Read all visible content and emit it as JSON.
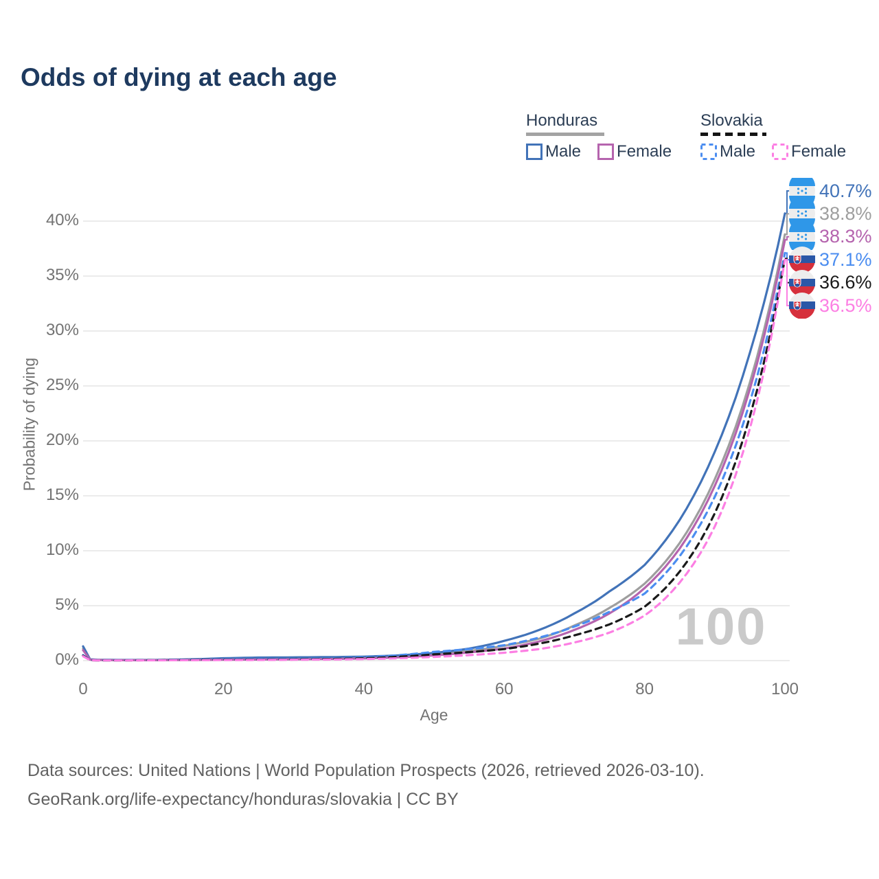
{
  "title": "Odds of dying at each age",
  "legend": {
    "groups": [
      {
        "name": "Honduras",
        "line_style": "solid",
        "underline_color": "#a3a3a3",
        "items": [
          {
            "label": "Male",
            "color": "#4273b8",
            "dash": false
          },
          {
            "label": "Female",
            "color": "#b564ae",
            "dash": false
          }
        ]
      },
      {
        "name": "Slovakia",
        "line_style": "dashed",
        "underline_color": "#141414",
        "items": [
          {
            "label": "Male",
            "color": "#4b8df0",
            "dash": true
          },
          {
            "label": "Female",
            "color": "#fc7fe3",
            "dash": true
          }
        ]
      }
    ]
  },
  "chart_data": {
    "type": "line",
    "title": "Odds of dying at each age",
    "xlabel": "Age",
    "ylabel": "Probability of dying",
    "xlim": [
      0,
      100
    ],
    "ylim": [
      0,
      42
    ],
    "xticks": [
      0,
      20,
      40,
      60,
      80,
      100
    ],
    "yticks": [
      0,
      5,
      10,
      15,
      20,
      25,
      30,
      35,
      40
    ],
    "ytick_suffix": "%",
    "grid": "horizontal",
    "watermark": "100",
    "ages": [
      0,
      1,
      2,
      5,
      10,
      15,
      20,
      25,
      30,
      35,
      40,
      45,
      50,
      55,
      60,
      65,
      70,
      75,
      80,
      85,
      90,
      95,
      100
    ],
    "series": [
      {
        "id": "honduras-male",
        "country": "Honduras",
        "sex": "Male",
        "color": "#4273b8",
        "dash": false,
        "end_label": "40.7%",
        "values": [
          1.3,
          0.12,
          0.08,
          0.06,
          0.06,
          0.12,
          0.22,
          0.28,
          0.3,
          0.32,
          0.36,
          0.48,
          0.7,
          1.1,
          1.8,
          2.8,
          4.3,
          6.3,
          8.7,
          12.8,
          19.0,
          28.0,
          40.7
        ]
      },
      {
        "id": "honduras-total",
        "country": "Honduras",
        "sex": "Both",
        "color": "#9e9e9e",
        "dash": false,
        "end_label": "38.8%",
        "values": [
          1.1,
          0.1,
          0.07,
          0.05,
          0.05,
          0.09,
          0.14,
          0.18,
          0.2,
          0.23,
          0.28,
          0.38,
          0.58,
          0.88,
          1.35,
          2.0,
          3.2,
          4.8,
          7.0,
          10.7,
          16.5,
          25.3,
          38.8
        ]
      },
      {
        "id": "honduras-female",
        "country": "Honduras",
        "sex": "Female",
        "color": "#b564ae",
        "dash": false,
        "end_label": "38.3%",
        "values": [
          0.95,
          0.09,
          0.06,
          0.04,
          0.04,
          0.06,
          0.08,
          0.1,
          0.12,
          0.15,
          0.2,
          0.3,
          0.48,
          0.75,
          1.1,
          1.75,
          2.8,
          4.3,
          6.6,
          10.2,
          15.9,
          24.7,
          38.3
        ]
      },
      {
        "id": "slovakia-male",
        "country": "Slovakia",
        "sex": "Male",
        "color": "#4b8df0",
        "dash": true,
        "end_label": "37.1%",
        "values": [
          0.5,
          0.05,
          0.03,
          0.03,
          0.05,
          0.09,
          0.12,
          0.13,
          0.15,
          0.2,
          0.3,
          0.5,
          0.8,
          1.05,
          1.4,
          2.1,
          3.1,
          4.45,
          6.1,
          9.5,
          14.9,
          23.5,
          37.1
        ]
      },
      {
        "id": "slovakia-total",
        "country": "Slovakia",
        "sex": "Both",
        "color": "#1a1a1a",
        "dash": true,
        "end_label": "36.6%",
        "values": [
          0.45,
          0.04,
          0.02,
          0.02,
          0.04,
          0.06,
          0.08,
          0.09,
          0.11,
          0.15,
          0.22,
          0.36,
          0.57,
          0.78,
          1.05,
          1.55,
          2.3,
          3.3,
          4.9,
          8.1,
          13.4,
          22.2,
          36.6
        ]
      },
      {
        "id": "slovakia-female",
        "country": "Slovakia",
        "sex": "Female",
        "color": "#fc7fe3",
        "dash": true,
        "end_label": "36.5%",
        "values": [
          0.4,
          0.04,
          0.02,
          0.02,
          0.03,
          0.04,
          0.05,
          0.06,
          0.08,
          0.1,
          0.14,
          0.22,
          0.34,
          0.5,
          0.72,
          1.05,
          1.65,
          2.55,
          4.1,
          7.1,
          12.2,
          21.1,
          36.5
        ]
      }
    ],
    "flag_colors": {
      "honduras_blue": "#2f97e8",
      "honduras_white": "#ededed",
      "slovakia_white": "#ededed",
      "slovakia_blue": "#2b57a7",
      "slovakia_red": "#d6303c"
    }
  },
  "footer": {
    "line1": "Data sources: United Nations | World Population Prospects (2026, retrieved 2026-03-10).",
    "line2": "GeoRank.org/life-expectancy/honduras/slovakia | CC BY"
  }
}
